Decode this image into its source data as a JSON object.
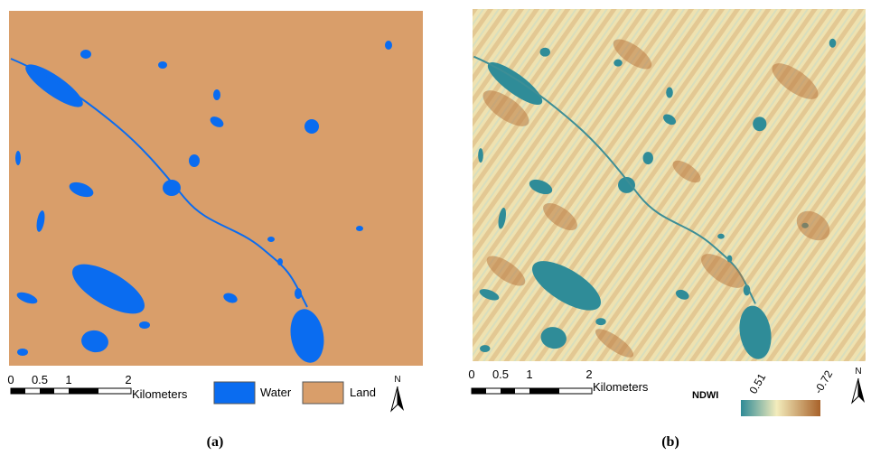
{
  "panels": [
    {
      "caption": "(a)",
      "scale_bar": {
        "ticks": [
          "0",
          "0.5",
          "1",
          "2"
        ],
        "unit": "Kilometers"
      },
      "legend": [
        {
          "label": "Water",
          "color": "#0a6cf0"
        },
        {
          "label": "Land",
          "color": "#d99e6a"
        }
      ],
      "north": "N"
    },
    {
      "caption": "(b)",
      "scale_bar": {
        "ticks": [
          "0",
          "0.5",
          "1",
          "2"
        ],
        "unit": "Kilometers"
      },
      "colorbar": {
        "title": "NDWI",
        "high": "0.51",
        "low": "-0.72"
      },
      "north": "N"
    }
  ]
}
